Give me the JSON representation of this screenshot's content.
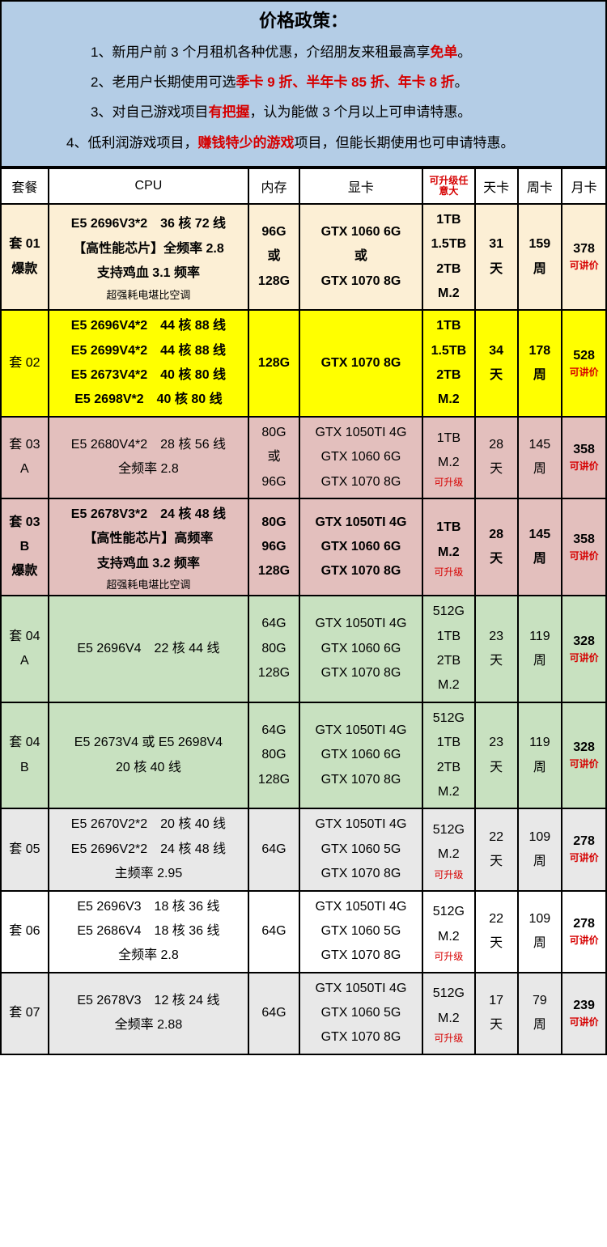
{
  "header": {
    "title": "价格政策：",
    "lines": [
      {
        "pre": "1、新用户前 3 个月租机各种优惠，介绍朋友来租最高享",
        "hl": "免单",
        "post": "。"
      },
      {
        "pre": "2、老用户长期使用可选",
        "hl": "季卡 9 折、半年卡 85 折、年卡 8 折",
        "post": "。"
      },
      {
        "pre": "3、对自己游戏项目",
        "hl": "有把握",
        "post": "，认为能做 3 个月以上可申请特惠。"
      },
      {
        "pre": "4、低利润游戏项目，",
        "hl": "赚钱特少的游戏",
        "post": "项目，但能长期使用也可申请特惠。"
      }
    ]
  },
  "columns": {
    "plan": "套餐",
    "cpu": "CPU",
    "mem": "内存",
    "gpu": "显卡",
    "disk_note": "可升级任意大",
    "day": "天卡",
    "week": "周卡",
    "month": "月卡"
  },
  "neg_label": "可讲价",
  "upgrade_label": "可升级",
  "rows": [
    {
      "bg": "bg-cream",
      "plan": [
        "套 01",
        "爆款"
      ],
      "plan_bold": true,
      "cpu": [
        "E5 2696V3*2　36 核 72 线",
        "【高性能芯片】全频率 2.8",
        "支持鸡血 3.1 频率"
      ],
      "cpu_tail": "超强耗电堪比空调",
      "cpu_bold": true,
      "mem": [
        "96G",
        "或",
        "128G"
      ],
      "mem_bold": true,
      "gpu": [
        "GTX 1060 6G",
        "或",
        "GTX 1070 8G"
      ],
      "gpu_bold": true,
      "disk": [
        "1TB",
        "1.5TB",
        "2TB",
        "M.2"
      ],
      "disk_bold": true,
      "day": [
        "31",
        "天"
      ],
      "day_bold": true,
      "week": [
        "159",
        "周"
      ],
      "week_bold": true,
      "month": "378",
      "month_bold": true
    },
    {
      "bg": "bg-yellow",
      "plan": [
        "套 02"
      ],
      "cpu": [
        "E5 2696V4*2　44 核 88 线",
        "E5 2699V4*2　44 核 88 线",
        "E5 2673V4*2　40 核 80 线",
        "E5 2698V*2　40 核 80 线"
      ],
      "cpu_bold": true,
      "mem": [
        "128G"
      ],
      "mem_bold": true,
      "gpu": [
        "GTX 1070 8G"
      ],
      "gpu_bold": true,
      "disk": [
        "1TB",
        "1.5TB",
        "2TB",
        "M.2"
      ],
      "disk_bold": true,
      "day": [
        "34",
        "天"
      ],
      "day_bold": true,
      "week": [
        "178",
        "周"
      ],
      "week_bold": true,
      "month": "528",
      "month_bold": true
    },
    {
      "bg": "bg-pink",
      "plan": [
        "套 03",
        "A"
      ],
      "cpu": [
        "E5 2680V4*2　28 核 56 线",
        "全频率 2.8"
      ],
      "mem": [
        "80G",
        "或",
        "96G"
      ],
      "gpu": [
        "GTX 1050TI 4G",
        "GTX 1060 6G",
        "GTX 1070 8G"
      ],
      "disk": [
        "1TB",
        "M.2"
      ],
      "disk_upgrade": true,
      "day": [
        "28",
        "天"
      ],
      "week": [
        "145",
        "周"
      ],
      "month": "358"
    },
    {
      "bg": "bg-pink",
      "plan": [
        "套 03",
        "B",
        "爆款"
      ],
      "plan_bold": true,
      "cpu": [
        "E5 2678V3*2　24 核 48 线",
        "【高性能芯片】高频率",
        "支持鸡血 3.2 频率"
      ],
      "cpu_tail": "超强耗电堪比空调",
      "cpu_bold": true,
      "mem": [
        "80G",
        "96G",
        "128G"
      ],
      "mem_bold": true,
      "gpu": [
        "GTX 1050TI 4G",
        "GTX 1060 6G",
        "GTX 1070 8G"
      ],
      "gpu_bold": true,
      "disk": [
        "1TB",
        "M.2"
      ],
      "disk_bold": true,
      "disk_upgrade": true,
      "day": [
        "28",
        "天"
      ],
      "day_bold": true,
      "week": [
        "145",
        "周"
      ],
      "week_bold": true,
      "month": "358",
      "month_bold": true
    },
    {
      "bg": "bg-green",
      "plan": [
        "套 04",
        "A"
      ],
      "cpu": [
        "",
        "E5 2696V4　22 核 44 线"
      ],
      "mem": [
        "64G",
        "80G",
        "128G"
      ],
      "gpu": [
        "GTX 1050TI 4G",
        "GTX 1060 6G",
        "GTX 1070 8G"
      ],
      "disk": [
        "512G",
        "1TB",
        "2TB",
        "M.2"
      ],
      "day": [
        "23",
        "天"
      ],
      "week": [
        "119",
        "周"
      ],
      "month": "328"
    },
    {
      "bg": "bg-green",
      "plan": [
        "套 04",
        "B"
      ],
      "cpu": [
        "",
        "E5 2673V4 或 E5 2698V4",
        "20 核 40 线"
      ],
      "mem": [
        "64G",
        "80G",
        "128G"
      ],
      "gpu": [
        "GTX 1050TI 4G",
        "GTX 1060 6G",
        "GTX 1070 8G"
      ],
      "disk": [
        "512G",
        "1TB",
        "2TB",
        "M.2"
      ],
      "day": [
        "23",
        "天"
      ],
      "week": [
        "119",
        "周"
      ],
      "month": "328"
    },
    {
      "bg": "bg-grey",
      "plan": [
        "套 05"
      ],
      "cpu": [
        "E5 2670V2*2　20 核 40 线",
        "E5 2696V2*2　24 核 48 线",
        "主频率 2.95"
      ],
      "mem": [
        "64G"
      ],
      "gpu": [
        "GTX 1050TI 4G",
        "GTX 1060 5G",
        "GTX 1070 8G"
      ],
      "disk": [
        "512G",
        "M.2"
      ],
      "disk_upgrade": true,
      "day": [
        "22",
        "天"
      ],
      "week": [
        "109",
        "周"
      ],
      "month": "278"
    },
    {
      "bg": "bg-white",
      "plan": [
        "套 06"
      ],
      "cpu": [
        "E5 2696V3　18 核 36 线",
        "E5 2686V4　18 核 36 线",
        "全频率 2.8"
      ],
      "mem": [
        "64G"
      ],
      "gpu": [
        "GTX 1050TI 4G",
        "GTX 1060 5G",
        "GTX 1070 8G"
      ],
      "disk": [
        "512G",
        "M.2"
      ],
      "disk_upgrade": true,
      "day": [
        "22",
        "天"
      ],
      "week": [
        "109",
        "周"
      ],
      "month": "278"
    },
    {
      "bg": "bg-grey",
      "plan": [
        "套 07"
      ],
      "cpu": [
        "E5 2678V3　12 核 24 线",
        "全频率 2.88"
      ],
      "mem": [
        "64G"
      ],
      "gpu": [
        "GTX 1050TI 4G",
        "GTX 1060 5G",
        "GTX 1070 8G"
      ],
      "disk": [
        "512G",
        "M.2"
      ],
      "disk_upgrade": true,
      "day": [
        "17",
        "天"
      ],
      "week": [
        "79",
        "周"
      ],
      "month": "239"
    }
  ],
  "colors": {
    "header_bg": "#b4cde6",
    "cream": "#fcefd5",
    "yellow": "#ffff00",
    "pink": "#e3bfbd",
    "green": "#c8e1c0",
    "grey": "#e8e8e8",
    "red": "#d60000",
    "border": "#000000"
  }
}
